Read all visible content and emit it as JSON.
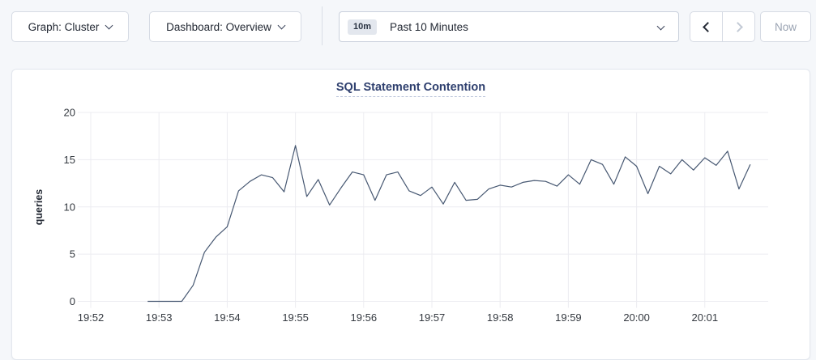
{
  "toolbar": {
    "graph_dropdown": {
      "label": "Graph: Cluster",
      "icon": "chevron-down-icon"
    },
    "dashboard_dropdown": {
      "label": "Dashboard: Overview",
      "icon": "chevron-down-icon"
    },
    "time_picker": {
      "badge": "10m",
      "label": "Past 10 Minutes",
      "icon": "chevron-down-icon"
    },
    "prev_range": {
      "icon": "chevron-left-icon",
      "enabled": true
    },
    "next_range": {
      "icon": "chevron-right-icon",
      "enabled": false
    },
    "now_button": {
      "label": "Now",
      "enabled": false
    }
  },
  "chart": {
    "title": "SQL Statement Contention",
    "ylabel": "queries"
  },
  "colors": {
    "page_background": "#f5f7fa",
    "panel_background": "#ffffff",
    "button_border": "#d6dbe4",
    "text_dark": "#242a35",
    "title_navy": "#2e3f6e",
    "disabled_text": "#9aa3b2",
    "gridline": "#ececf1",
    "series_line": "#475872"
  },
  "chart_data": {
    "type": "line",
    "title": "SQL Statement Contention",
    "xlabel": "",
    "ylabel": "queries",
    "ylim": [
      0,
      20
    ],
    "yticks": [
      0,
      5,
      10,
      15,
      20
    ],
    "xticks": [
      "19:52",
      "19:53",
      "19:54",
      "19:55",
      "19:56",
      "19:57",
      "19:58",
      "19:59",
      "20:00",
      "20:01"
    ],
    "grid": true,
    "legend_position": "none",
    "series": [
      {
        "name": "queries",
        "color": "#475872",
        "points": [
          [
            "19:52:50",
            0
          ],
          [
            "19:53:00",
            0
          ],
          [
            "19:53:10",
            0
          ],
          [
            "19:53:20",
            0
          ],
          [
            "19:53:30",
            1.7
          ],
          [
            "19:53:40",
            5.2
          ],
          [
            "19:53:50",
            6.8
          ],
          [
            "19:54:00",
            7.9
          ],
          [
            "19:54:10",
            11.7
          ],
          [
            "19:54:20",
            12.7
          ],
          [
            "19:54:30",
            13.4
          ],
          [
            "19:54:40",
            13.1
          ],
          [
            "19:54:50",
            11.6
          ],
          [
            "19:55:00",
            16.5
          ],
          [
            "19:55:10",
            11.1
          ],
          [
            "19:55:20",
            12.9
          ],
          [
            "19:55:30",
            10.2
          ],
          [
            "19:55:40",
            12.0
          ],
          [
            "19:55:50",
            13.7
          ],
          [
            "19:56:00",
            13.4
          ],
          [
            "19:56:10",
            10.7
          ],
          [
            "19:56:20",
            13.4
          ],
          [
            "19:56:30",
            13.7
          ],
          [
            "19:56:40",
            11.7
          ],
          [
            "19:56:50",
            11.2
          ],
          [
            "19:57:00",
            12.1
          ],
          [
            "19:57:10",
            10.3
          ],
          [
            "19:57:20",
            12.6
          ],
          [
            "19:57:30",
            10.7
          ],
          [
            "19:57:40",
            10.8
          ],
          [
            "19:57:50",
            11.9
          ],
          [
            "19:58:00",
            12.3
          ],
          [
            "19:58:10",
            12.1
          ],
          [
            "19:58:20",
            12.6
          ],
          [
            "19:58:30",
            12.8
          ],
          [
            "19:58:40",
            12.7
          ],
          [
            "19:58:50",
            12.2
          ],
          [
            "19:59:00",
            13.4
          ],
          [
            "19:59:10",
            12.4
          ],
          [
            "19:59:20",
            15.0
          ],
          [
            "19:59:30",
            14.5
          ],
          [
            "19:59:40",
            12.4
          ],
          [
            "19:59:50",
            15.3
          ],
          [
            "20:00:00",
            14.3
          ],
          [
            "20:00:10",
            11.4
          ],
          [
            "20:00:20",
            14.3
          ],
          [
            "20:00:30",
            13.5
          ],
          [
            "20:00:40",
            15.0
          ],
          [
            "20:00:50",
            13.9
          ],
          [
            "20:01:00",
            15.2
          ],
          [
            "20:01:10",
            14.4
          ],
          [
            "20:01:20",
            15.9
          ],
          [
            "20:01:30",
            11.9
          ],
          [
            "20:01:40",
            14.5
          ]
        ]
      }
    ]
  }
}
